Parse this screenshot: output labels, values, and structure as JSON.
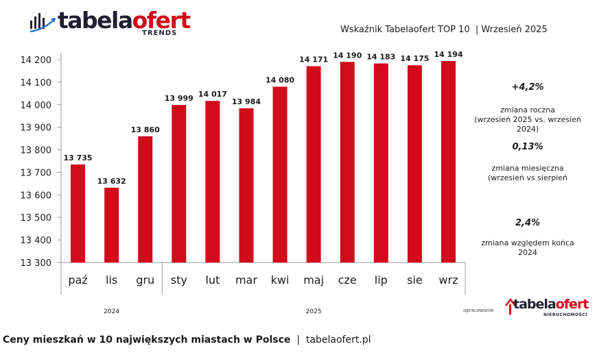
{
  "logo": {
    "word_dark": "tabela",
    "word_red": "ofert",
    "sub": "TRENDS"
  },
  "header": {
    "title": "Wskaźnik Tabelaofert TOP 10  | Wrzesień 2025"
  },
  "chart_data": {
    "type": "bar",
    "categories": [
      "paź",
      "lis",
      "gru",
      "sty",
      "lut",
      "mar",
      "kwi",
      "maj",
      "cze",
      "lip",
      "sie",
      "wrz"
    ],
    "values": [
      13735,
      13632,
      13860,
      13999,
      14017,
      13984,
      14080,
      14171,
      14190,
      14183,
      14175,
      14194
    ],
    "value_labels": [
      "13 735",
      "13 632",
      "13 860",
      "13 999",
      "14 017",
      "13 984",
      "14 080",
      "14 171",
      "14 190",
      "14 183",
      "14 175",
      "14 194"
    ],
    "ylim": [
      13300,
      14200
    ],
    "yticks": [
      13300,
      13400,
      13500,
      13600,
      13700,
      13800,
      13900,
      14000,
      14100,
      14200
    ],
    "ytick_labels": [
      "13 300",
      "13 400",
      "13 500",
      "13 600",
      "13 700",
      "13 800",
      "13 900",
      "14 000",
      "14 100",
      "14 200"
    ],
    "year_groups": [
      {
        "label": "2024",
        "start": 0,
        "end": 2
      },
      {
        "label": "2025",
        "start": 3,
        "end": 11
      }
    ],
    "bar_color": "#d10b1a",
    "grid": false
  },
  "stats": [
    {
      "value": "+4,2%",
      "label": "zmiana roczna\n(wrzesień 2025 vs. wrzesień\n2024)"
    },
    {
      "value": "0,13%",
      "label": "zmiana miesięczna\n(wrzesień vs sierpień"
    },
    {
      "value": "2,4%",
      "label": "zmiana względem końca\n2024"
    }
  ],
  "footer": {
    "bold": "Ceny mieszkań w 10 największych miastach w Polsce",
    "rest": "  |  tabelaofert.pl",
    "credit": "opracowanie",
    "logo_dark": "tabela",
    "logo_red": "ofert",
    "logo_sub": "NIERUCHOMOŚCI"
  },
  "colors": {
    "accent": "#d10b1a",
    "dark": "#1f1f33",
    "arrow": "#2a6fd6"
  }
}
